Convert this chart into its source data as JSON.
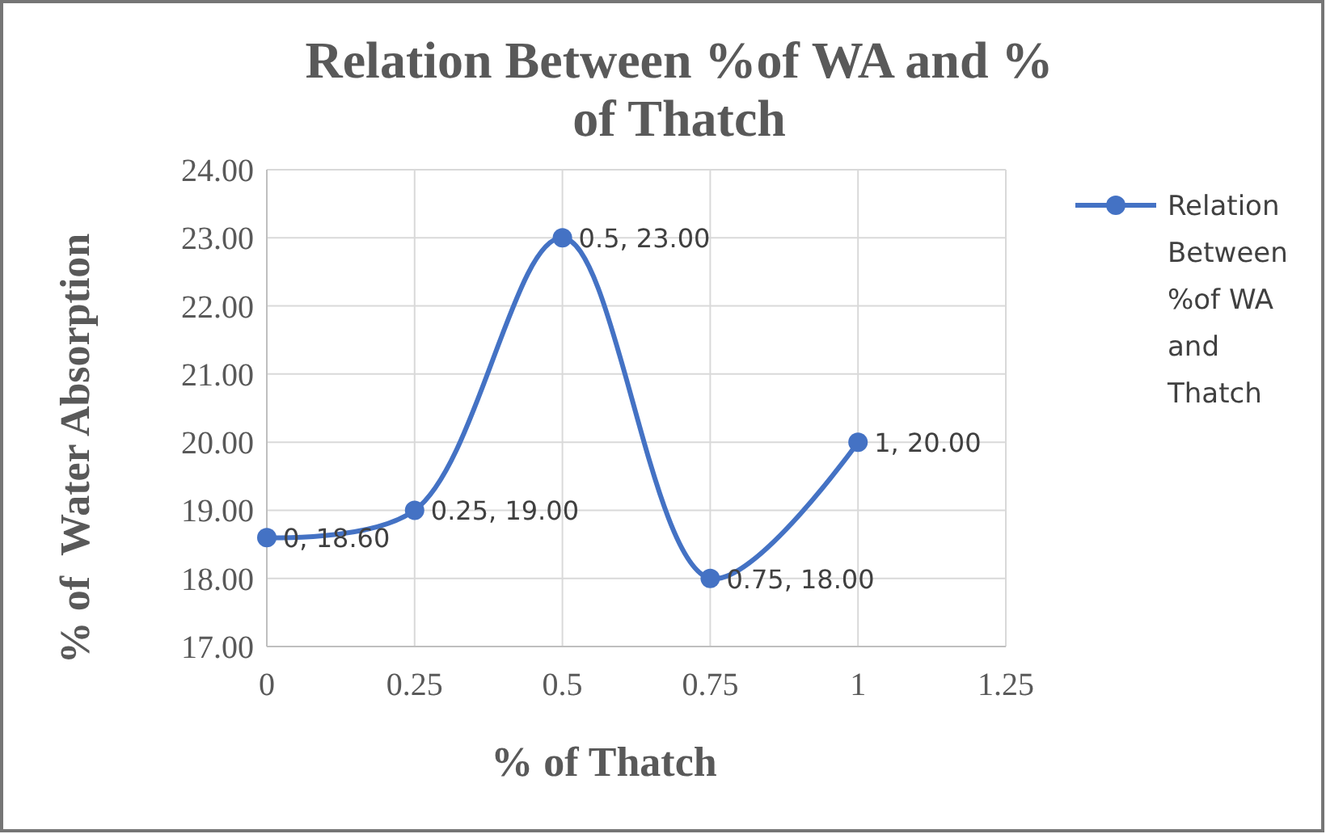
{
  "chart_data": {
    "type": "line",
    "title": "Relation Between %of WA and % of Thatch",
    "xlabel": "% of Thatch",
    "ylabel": "% of  Water Absorption",
    "x": [
      0,
      0.25,
      0.5,
      0.75,
      1
    ],
    "series": [
      {
        "name": "Relation Between %of WA and Thatch",
        "color": "#4472c4",
        "values": [
          18.6,
          19,
          23,
          18,
          20
        ],
        "value_labels": [
          "0, 18.60",
          "0.25, 19.00",
          "0.5, 23.00",
          "0.75, 18.00",
          "1, 20.00"
        ]
      }
    ],
    "xlim": [
      0,
      1.25
    ],
    "xticks": [
      0,
      0.25,
      0.5,
      0.75,
      1,
      1.25
    ],
    "ylim": [
      17,
      24
    ],
    "yticks": [
      {
        "value": 17,
        "label": "17.00"
      },
      {
        "value": 18,
        "label": "18.00"
      },
      {
        "value": 19,
        "label": "19.00"
      },
      {
        "value": 20,
        "label": "20.00"
      },
      {
        "value": 21,
        "label": "21.00"
      },
      {
        "value": 22,
        "label": "22.00"
      },
      {
        "value": 23,
        "label": "23.00"
      },
      {
        "value": 24,
        "label": "24.00"
      }
    ],
    "grid": true,
    "legend": "right",
    "marker": "circle",
    "line_style": "solid"
  }
}
